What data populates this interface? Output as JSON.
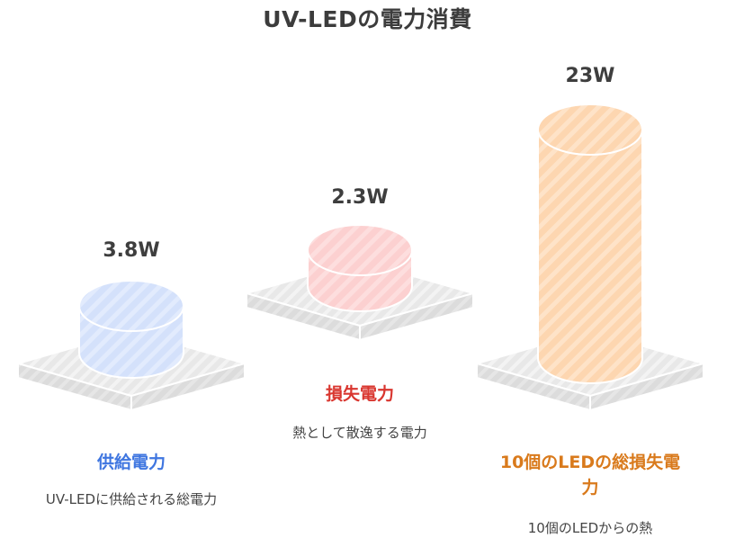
{
  "title": "UV-LEDの電力消費",
  "colors": {
    "blue_fill": "#d6e3fb",
    "red_fill": "#fdd2d2",
    "orange_fill": "#fdd9b5",
    "base_fill": "#e9e9e9",
    "blue_text": "#3f76e0",
    "red_text": "#d9362f",
    "orange_text": "#d97a1c"
  },
  "items": [
    {
      "value": "3.8W",
      "title": "供給電力",
      "description": "UV-LEDに供給される総電力",
      "color": "blue"
    },
    {
      "value": "2.3W",
      "title": "損失電力",
      "description": "熱として散逸する電力",
      "color": "red"
    },
    {
      "value": "23W",
      "title": "10個のLEDの総損失電力",
      "description": "10個のLEDからの熱",
      "color": "orange"
    }
  ]
}
